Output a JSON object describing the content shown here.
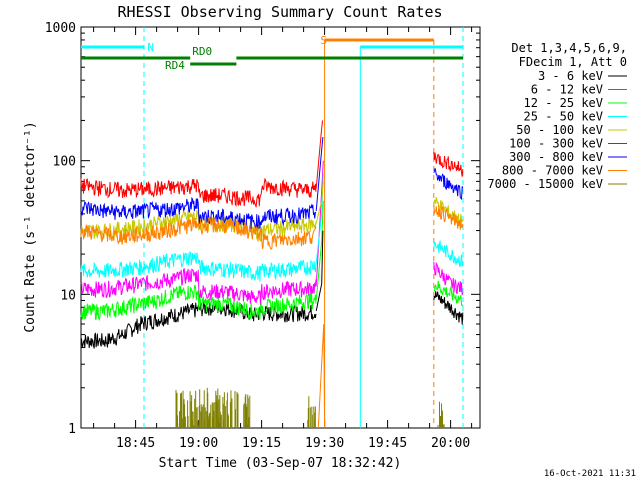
{
  "chart_data": {
    "type": "line",
    "title": "RHESSI Observing Summary Count Rates",
    "xlabel": "Start Time (03-Sep-07 18:32:42)",
    "ylabel": "Count Rate (s⁻¹ detector⁻¹)",
    "yscale": "log",
    "ylim": [
      1,
      1000
    ],
    "xlim_minutes_from_1832": [
      0,
      95
    ],
    "x_ticks": [
      {
        "label": "18:45",
        "t": 13
      },
      {
        "label": "19:00",
        "t": 28
      },
      {
        "label": "19:15",
        "t": 43
      },
      {
        "label": "19:30",
        "t": 58
      },
      {
        "label": "19:45",
        "t": 73
      },
      {
        "label": "20:00",
        "t": 88
      }
    ],
    "y_ticks": [
      {
        "label": "1",
        "v": 1
      },
      {
        "label": "10",
        "v": 10
      },
      {
        "label": "100",
        "v": 100
      },
      {
        "label": "1000",
        "v": 1000
      }
    ],
    "legend": {
      "header": [
        "Det 1,3,4,5,6,9,",
        "FDecim 1, Att 0"
      ],
      "placement": "right"
    },
    "series": [
      {
        "name": "3 - 6 keV",
        "color": "#000000",
        "points": [
          [
            0,
            4.5
          ],
          [
            6,
            4.5
          ],
          [
            10,
            5
          ],
          [
            14,
            6
          ],
          [
            18,
            6.5
          ],
          [
            22,
            7
          ],
          [
            26,
            7.5
          ],
          [
            30,
            8
          ],
          [
            34,
            8
          ],
          [
            38,
            7.5
          ],
          [
            41,
            7
          ],
          [
            43,
            7.3
          ],
          [
            46,
            7.2
          ],
          [
            50,
            7.2
          ],
          [
            54,
            7.3
          ],
          [
            56,
            7.5
          ]
        ],
        "after": [
          [
            84,
            10
          ],
          [
            86,
            9
          ],
          [
            88,
            8
          ],
          [
            91,
            6.5
          ]
        ]
      },
      {
        "name": "6 - 12 keV",
        "color": "#ff00ff",
        "points": [
          [
            0,
            11
          ],
          [
            6,
            11
          ],
          [
            10,
            11.5
          ],
          [
            14,
            12
          ],
          [
            18,
            12.5
          ],
          [
            22,
            13
          ],
          [
            26,
            14
          ],
          [
            28,
            14
          ],
          [
            28,
            10.5
          ],
          [
            34,
            10.5
          ],
          [
            38,
            10
          ],
          [
            41,
            9.5
          ],
          [
            43,
            9.5
          ],
          [
            43,
            10.5
          ],
          [
            50,
            11
          ],
          [
            54,
            11
          ],
          [
            56,
            11.5
          ]
        ],
        "after": [
          [
            84,
            16
          ],
          [
            86,
            14
          ],
          [
            88,
            12
          ],
          [
            91,
            11
          ]
        ]
      },
      {
        "name": "12 - 25 keV",
        "color": "#00ff00",
        "points": [
          [
            0,
            7.5
          ],
          [
            6,
            7.5
          ],
          [
            10,
            8
          ],
          [
            14,
            8.5
          ],
          [
            18,
            9
          ],
          [
            22,
            10
          ],
          [
            26,
            10.5
          ],
          [
            28,
            10.5
          ],
          [
            28,
            8.5
          ],
          [
            34,
            8.5
          ],
          [
            38,
            8
          ],
          [
            41,
            7.5
          ],
          [
            43,
            7.5
          ],
          [
            43,
            8
          ],
          [
            50,
            8.5
          ],
          [
            54,
            9
          ],
          [
            56,
            9
          ]
        ],
        "after": [
          [
            84,
            12
          ],
          [
            86,
            11
          ],
          [
            88,
            10
          ],
          [
            91,
            9
          ]
        ]
      },
      {
        "name": "25 - 50 keV",
        "color": "#00ffff",
        "points": [
          [
            0,
            15
          ],
          [
            6,
            15
          ],
          [
            10,
            15.5
          ],
          [
            14,
            16
          ],
          [
            18,
            17
          ],
          [
            22,
            18
          ],
          [
            26,
            19
          ],
          [
            28,
            19
          ],
          [
            28,
            16
          ],
          [
            34,
            15.5
          ],
          [
            38,
            15
          ],
          [
            41,
            14.5
          ],
          [
            43,
            14.5
          ],
          [
            43,
            15
          ],
          [
            50,
            15.5
          ],
          [
            54,
            16
          ],
          [
            56,
            17
          ]
        ],
        "after": [
          [
            84,
            24
          ],
          [
            86,
            22
          ],
          [
            88,
            20
          ],
          [
            91,
            17.5
          ]
        ]
      },
      {
        "name": "50 - 100 keV",
        "color": "#c8c800",
        "points": [
          [
            0,
            30
          ],
          [
            6,
            30
          ],
          [
            10,
            31
          ],
          [
            14,
            32
          ],
          [
            18,
            34
          ],
          [
            22,
            36
          ],
          [
            26,
            38
          ],
          [
            28,
            38
          ],
          [
            28,
            34
          ],
          [
            34,
            34
          ],
          [
            38,
            33
          ],
          [
            41,
            30
          ],
          [
            43,
            29
          ],
          [
            43,
            30
          ],
          [
            50,
            32
          ],
          [
            54,
            33
          ],
          [
            56,
            34
          ]
        ],
        "after": [
          [
            84,
            50
          ],
          [
            86,
            45
          ],
          [
            88,
            40
          ],
          [
            91,
            35
          ]
        ]
      },
      {
        "name": "100 - 300 keV",
        "color": "#ff0000",
        "points": [
          [
            0,
            65
          ],
          [
            6,
            62
          ],
          [
            10,
            60
          ],
          [
            14,
            61
          ],
          [
            18,
            62
          ],
          [
            22,
            63
          ],
          [
            26,
            65
          ],
          [
            28,
            66
          ],
          [
            28,
            66
          ],
          [
            28,
            55
          ],
          [
            30,
            55
          ],
          [
            34,
            55
          ],
          [
            38,
            53
          ],
          [
            41,
            52
          ],
          [
            43,
            52
          ],
          [
            43,
            65
          ],
          [
            50,
            62
          ],
          [
            54,
            60
          ],
          [
            56,
            62
          ]
        ],
        "after": [
          [
            84,
            110
          ],
          [
            86,
            100
          ],
          [
            88,
            95
          ],
          [
            91,
            85
          ]
        ]
      },
      {
        "name": "300 - 800 keV",
        "color": "#0000ff",
        "points": [
          [
            0,
            45
          ],
          [
            6,
            42
          ],
          [
            10,
            41
          ],
          [
            14,
            42
          ],
          [
            18,
            43
          ],
          [
            22,
            44
          ],
          [
            26,
            46
          ],
          [
            28,
            47
          ],
          [
            28,
            39
          ],
          [
            34,
            38
          ],
          [
            38,
            37
          ],
          [
            41,
            35
          ],
          [
            43,
            35
          ],
          [
            43,
            38
          ],
          [
            50,
            39
          ],
          [
            54,
            40
          ],
          [
            56,
            42
          ]
        ],
        "after": [
          [
            84,
            80
          ],
          [
            86,
            72
          ],
          [
            88,
            66
          ],
          [
            91,
            58
          ]
        ]
      },
      {
        "name": "800 - 7000 keV",
        "color": "#ff8000",
        "points": [
          [
            0,
            30
          ],
          [
            6,
            28
          ],
          [
            10,
            27
          ],
          [
            14,
            28
          ],
          [
            18,
            29
          ],
          [
            22,
            31
          ],
          [
            26,
            33
          ],
          [
            28,
            34
          ],
          [
            28,
            33
          ],
          [
            34,
            33
          ],
          [
            38,
            31
          ],
          [
            41,
            29
          ],
          [
            43,
            28
          ],
          [
            43,
            25
          ],
          [
            50,
            26
          ],
          [
            54,
            27
          ],
          [
            56,
            28
          ]
        ],
        "after": [
          [
            84,
            45
          ],
          [
            86,
            41
          ],
          [
            88,
            37
          ],
          [
            91,
            33
          ]
        ]
      },
      {
        "name": "7000 - 15000 keV",
        "color": "#808000",
        "points": [],
        "after": []
      }
    ],
    "flags": [
      {
        "label": "N",
        "color": "#00ffff"
      },
      {
        "label": "S",
        "color": "#ff8000"
      },
      {
        "label": "RD0",
        "color": "#008000"
      },
      {
        "label": "RD4",
        "color": "#008000"
      }
    ]
  },
  "footer": {
    "timestamp": "16-Oct-2021 11:31"
  }
}
